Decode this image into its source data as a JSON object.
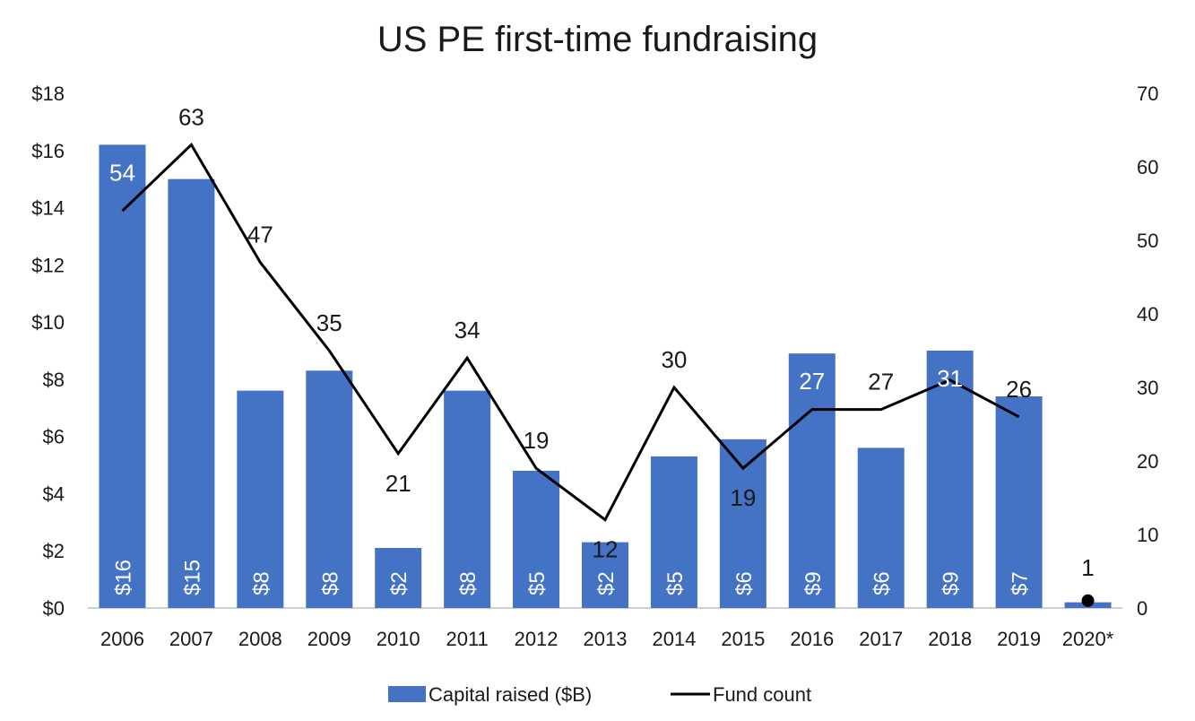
{
  "chart_data": {
    "type": "bar",
    "title": "US PE first-time fundraising",
    "categories": [
      "2006",
      "2007",
      "2008",
      "2009",
      "2010",
      "2011",
      "2012",
      "2013",
      "2014",
      "2015",
      "2016",
      "2017",
      "2018",
      "2019",
      "2020*"
    ],
    "series": [
      {
        "name": "Capital raised ($B)",
        "type": "bar",
        "axis": "left",
        "color": "#4472C4",
        "values": [
          16.2,
          15.0,
          7.6,
          8.3,
          2.1,
          7.6,
          4.8,
          2.3,
          5.3,
          5.9,
          8.9,
          5.6,
          9.0,
          7.4,
          0.2
        ],
        "labels": [
          "$16",
          "$15",
          "$8",
          "$8",
          "$2",
          "$8",
          "$5",
          "$2",
          "$5",
          "$6",
          "$9",
          "$6",
          "$9",
          "$7",
          ""
        ]
      },
      {
        "name": "Fund count",
        "type": "line",
        "axis": "right",
        "color": "#000000",
        "values": [
          54,
          63,
          47,
          35,
          21,
          34,
          19,
          12,
          30,
          19,
          27,
          27,
          31,
          26,
          1
        ],
        "labels": [
          "54",
          "63",
          "47",
          "35",
          "21",
          "34",
          "19",
          "12",
          "30",
          "19",
          "27",
          "27",
          "31",
          "26",
          "1"
        ]
      }
    ],
    "y_left": {
      "min": 0,
      "max": 18,
      "step": 2,
      "ticks": [
        "$0",
        "$2",
        "$4",
        "$6",
        "$8",
        "$10",
        "$12",
        "$14",
        "$16",
        "$18"
      ]
    },
    "y_right": {
      "min": 0,
      "max": 70,
      "step": 10,
      "ticks": [
        "0",
        "10",
        "20",
        "30",
        "40",
        "50",
        "60",
        "70"
      ]
    },
    "grid": false,
    "legend_position": "bottom"
  }
}
